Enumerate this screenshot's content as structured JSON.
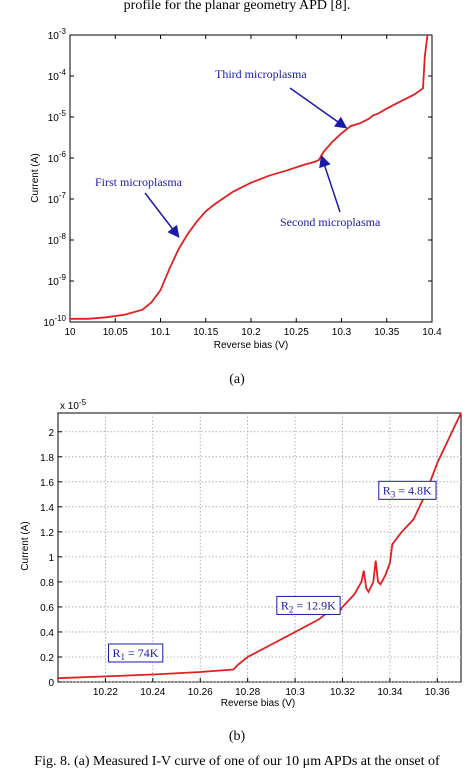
{
  "header_text": "profile for the planar geometry APD [8].",
  "footer_caption": "Fig. 8. (a) Measured I-V curve of one of our 10 μm APDs at the onset of",
  "colors": {
    "curve": "#e02020",
    "annotation": "#1a1aa8",
    "grid": "#a0a0a0"
  },
  "chart_data": [
    {
      "type": "line",
      "label": "(a)",
      "xlabel": "Reverse bias (V)",
      "ylabel": "Current (A)",
      "xlim": [
        10,
        10.4
      ],
      "ylim": [
        1e-10,
        0.001
      ],
      "yscale": "log",
      "grid": false,
      "x_ticks": [
        "10",
        "10.05",
        "10.1",
        "10.15",
        "10.2",
        "10.25",
        "10.3",
        "10.35",
        "10.4"
      ],
      "y_ticks": [
        "10-10",
        "10-9",
        "10-8",
        "10-7",
        "10-6",
        "10-5",
        "10-4",
        "10-3"
      ],
      "series": [
        {
          "x": [
            10.0,
            10.02,
            10.04,
            10.06,
            10.08,
            10.09,
            10.1,
            10.11,
            10.12,
            10.13,
            10.14,
            10.15,
            10.16,
            10.18,
            10.2,
            10.22,
            10.24,
            10.26,
            10.27,
            10.275,
            10.28,
            10.29,
            10.3,
            10.31,
            10.32,
            10.33,
            10.335,
            10.34,
            10.35,
            10.36,
            10.37,
            10.38,
            10.39,
            10.392,
            10.395
          ],
          "y": [
            1.2e-10,
            1.2e-10,
            1.3e-10,
            1.5e-10,
            2e-10,
            3e-10,
            6e-10,
            2e-09,
            6e-09,
            1.4e-08,
            2.8e-08,
            5e-08,
            7.5e-08,
            1.5e-07,
            2.5e-07,
            3.7e-07,
            5e-07,
            7e-07,
            8e-07,
            9e-07,
            1.4e-06,
            2.5e-06,
            4e-06,
            6e-06,
            7e-06,
            9e-06,
            1.1e-05,
            1.2e-05,
            1.6e-05,
            2.1e-05,
            2.7e-05,
            3.5e-05,
            5e-05,
            0.0003,
            0.001
          ]
        }
      ],
      "annotations": [
        {
          "text": "First microplasma",
          "x": 10.12,
          "y": 1.2e-08
        },
        {
          "text": "Second microplasma",
          "x": 10.278,
          "y": 1.1e-06
        },
        {
          "text": "Third microplasma",
          "x": 10.305,
          "y": 5.5e-06
        }
      ]
    },
    {
      "type": "line",
      "label": "(b)",
      "xlabel": "Reverse bias (V)",
      "ylabel": "Current (A)",
      "y_multiplier": "x 10-5",
      "xlim": [
        10.2,
        10.37
      ],
      "ylim": [
        0,
        2.15
      ],
      "grid": true,
      "x_ticks": [
        "10.22",
        "10.24",
        "10.26",
        "10.28",
        "10.3",
        "10.32",
        "10.34",
        "10.36"
      ],
      "y_ticks": [
        "0",
        "0.2",
        "0.4",
        "0.6",
        "0.8",
        "1",
        "1.2",
        "1.4",
        "1.6",
        "1.8",
        "2"
      ],
      "series": [
        {
          "x": [
            10.2,
            10.22,
            10.24,
            10.26,
            10.274,
            10.276,
            10.28,
            10.29,
            10.3,
            10.31,
            10.314,
            10.316,
            10.318,
            10.32,
            10.325,
            10.328,
            10.329,
            10.33,
            10.331,
            10.333,
            10.334,
            10.335,
            10.336,
            10.338,
            10.34,
            10.341,
            10.343,
            10.345,
            10.35,
            10.355,
            10.36,
            10.365,
            10.37
          ],
          "y": [
            0.03,
            0.045,
            0.06,
            0.08,
            0.1,
            0.14,
            0.2,
            0.3,
            0.4,
            0.5,
            0.56,
            0.59,
            0.55,
            0.6,
            0.7,
            0.8,
            0.89,
            0.75,
            0.72,
            0.8,
            0.97,
            0.8,
            0.78,
            0.85,
            0.95,
            1.1,
            1.15,
            1.2,
            1.3,
            1.5,
            1.75,
            1.95,
            2.15
          ]
        }
      ],
      "annotations": [
        {
          "text": "R1 = 74K",
          "x": 10.223,
          "y": 0.2
        },
        {
          "text": "R2 = 12.9K",
          "x": 10.294,
          "y": 0.58
        },
        {
          "text": "R3 = 4.8K",
          "x": 10.337,
          "y": 1.5
        }
      ]
    }
  ]
}
